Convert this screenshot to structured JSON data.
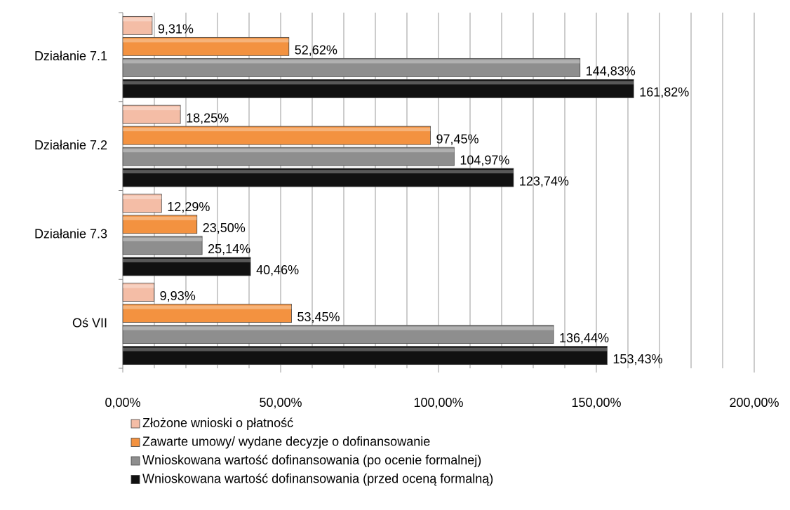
{
  "chart_data": {
    "type": "bar",
    "orientation": "horizontal",
    "categories": [
      "Działanie 7.1",
      "Działanie 7.2",
      "Działanie 7.3",
      "Oś  VII"
    ],
    "series": [
      {
        "name": "Złożone wnioski o płatność",
        "color": "#f4bda6",
        "values": [
          9.31,
          18.25,
          12.29,
          9.93
        ],
        "value_labels": [
          "9,31%",
          "18,25%",
          "12,29%",
          "9,93%"
        ]
      },
      {
        "name": "Zawarte umowy/ wydane decyzje o dofinansowanie",
        "color": "#f39240",
        "values": [
          52.62,
          97.45,
          23.5,
          53.45
        ],
        "value_labels": [
          "52,62%",
          "97,45%",
          "23,50%",
          "53,45%"
        ]
      },
      {
        "name": "Wnioskowana wartość dofinansowania (po ocenie formalnej)",
        "color": "#8e8e8e",
        "values": [
          144.83,
          104.97,
          25.14,
          136.44
        ],
        "value_labels": [
          "144,83%",
          "104,97%",
          "25,14%",
          "136,44%"
        ]
      },
      {
        "name": "Wnioskowana wartość dofinansowania (przed oceną formalną)",
        "color": "#111111",
        "values": [
          161.82,
          123.74,
          40.46,
          153.43
        ],
        "value_labels": [
          "161,82%",
          "123,74%",
          "40,46%",
          "153,43%"
        ]
      }
    ],
    "xlim": [
      0,
      200
    ],
    "xticks": [
      {
        "value": 0,
        "label": "0,00%"
      },
      {
        "value": 50,
        "label": "50,00%"
      },
      {
        "value": 100,
        "label": "100,00%"
      },
      {
        "value": 150,
        "label": "150,00%"
      },
      {
        "value": 200,
        "label": "200,00%"
      }
    ],
    "xminorticks": [
      10,
      20,
      30,
      40,
      60,
      70,
      80,
      90,
      110,
      120,
      130,
      140,
      160,
      170,
      180,
      190
    ],
    "grid": true,
    "legend": "bottom"
  }
}
